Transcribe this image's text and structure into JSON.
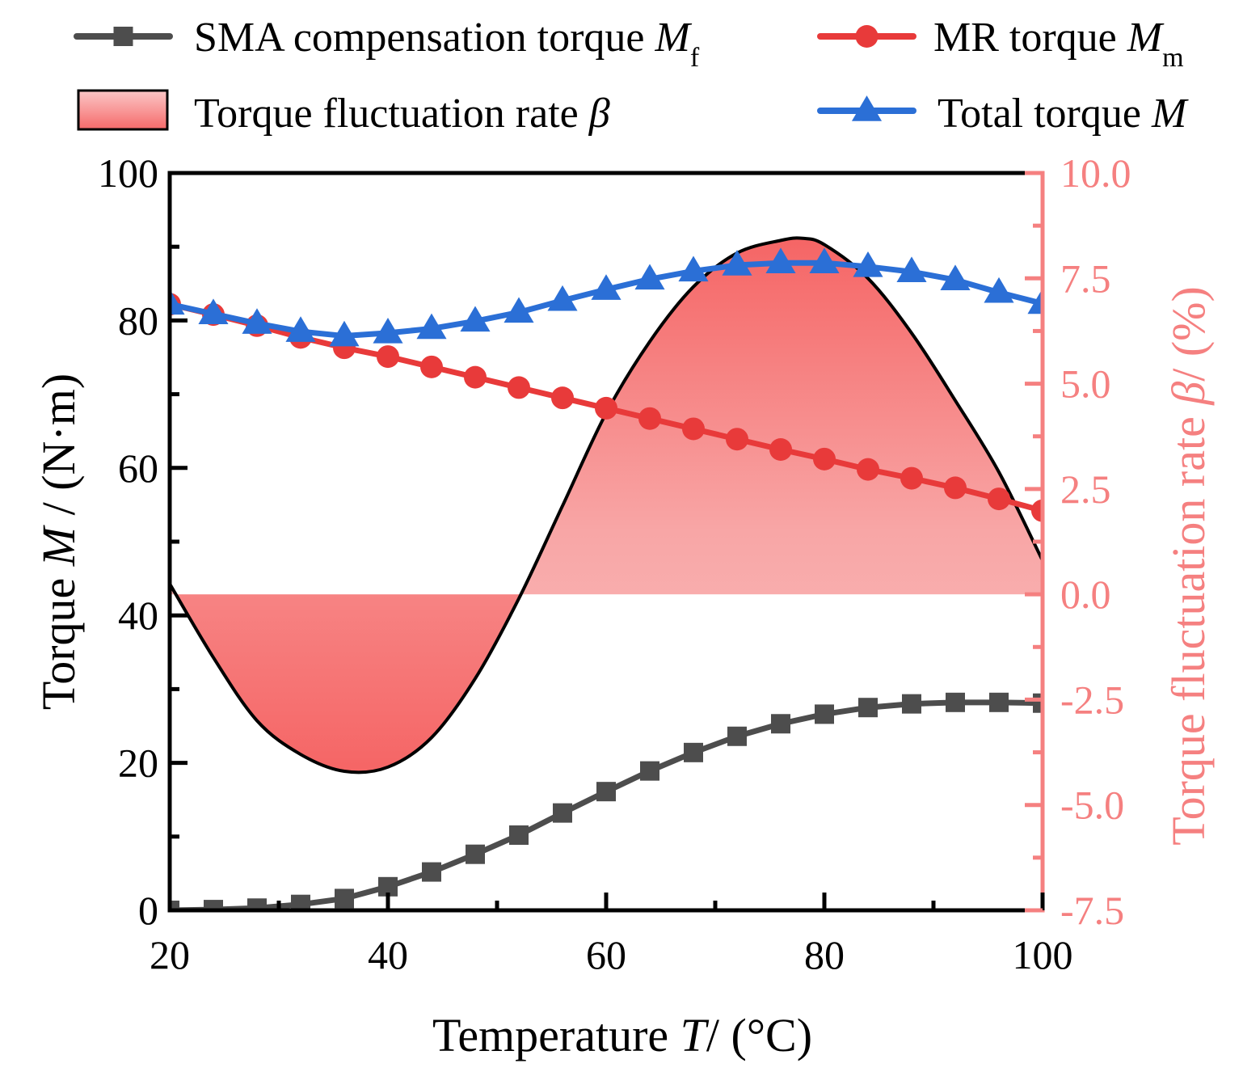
{
  "chart_data": {
    "type": "line",
    "title": "",
    "xlabel": {
      "prefix": "Temperature ",
      "symbol": "T",
      "suffix": "/ (°C)"
    },
    "ylabel": {
      "prefix": "Torque ",
      "symbol": "M",
      "suffix": " / (N·m)"
    },
    "y2label": {
      "prefix": "Torque fluctuation rate ",
      "symbol": "β",
      "suffix": "/ (%)"
    },
    "xlim": [
      20,
      100
    ],
    "ylim": [
      0,
      100
    ],
    "y2lim": [
      -7.5,
      10
    ],
    "x_ticks": [
      20,
      40,
      60,
      80,
      100
    ],
    "y_ticks": [
      0,
      20,
      40,
      60,
      80,
      100
    ],
    "y2_ticks": [
      -7.5,
      -5.0,
      -2.5,
      0.0,
      2.5,
      5.0,
      7.5,
      10.0
    ],
    "y2_tick_labels": [
      "-7.5",
      "-5.0",
      "-2.5",
      "0.0",
      "2.5",
      "5.0",
      "7.5",
      "10.0"
    ],
    "grid": false,
    "legend_position": "top",
    "colors": {
      "sma": "#4d4d4d",
      "mr": "#e83a3a",
      "total": "#2b6fd6",
      "fluct_fill": "#f57070",
      "right_axis": "#f58080"
    },
    "x": [
      20,
      24,
      28,
      32,
      36,
      40,
      44,
      48,
      52,
      56,
      60,
      64,
      68,
      72,
      76,
      80,
      84,
      88,
      92,
      96,
      100
    ],
    "series": [
      {
        "key": "sma",
        "name": "SMA compensation torque",
        "symbol": "M",
        "subscript": "f",
        "marker": "square",
        "axis": "left",
        "values": [
          0.0,
          0.1,
          0.3,
          0.8,
          1.6,
          3.2,
          5.2,
          7.6,
          10.2,
          13.2,
          16.1,
          18.9,
          21.4,
          23.6,
          25.3,
          26.6,
          27.5,
          28.0,
          28.2,
          28.2,
          28.1
        ]
      },
      {
        "key": "mr",
        "name": "MR torque",
        "symbol": "M",
        "subscript": "m",
        "marker": "circle",
        "axis": "left",
        "values": [
          82.2,
          80.8,
          79.3,
          77.7,
          76.3,
          75.1,
          73.7,
          72.3,
          70.9,
          69.5,
          68.1,
          66.7,
          65.3,
          63.9,
          62.5,
          61.2,
          59.8,
          58.6,
          57.3,
          55.8,
          54.2
        ]
      },
      {
        "key": "total",
        "name": "Total torque",
        "symbol": "M",
        "subscript": "",
        "marker": "triangle",
        "axis": "left",
        "values": [
          82.2,
          80.9,
          79.6,
          78.5,
          77.9,
          78.3,
          78.9,
          79.9,
          81.1,
          82.7,
          84.2,
          85.6,
          86.7,
          87.5,
          87.8,
          87.8,
          87.3,
          86.6,
          85.5,
          83.8,
          82.3
        ]
      }
    ],
    "fluctuation": {
      "name": "Torque fluctuation rate",
      "symbol": "β",
      "axis": "right",
      "x": [
        20,
        24,
        28,
        32,
        36,
        40,
        44,
        48,
        52,
        56,
        60,
        64,
        68,
        72,
        76,
        78,
        80,
        84,
        88,
        92,
        96,
        100
      ],
      "values": [
        0.25,
        -1.5,
        -3.0,
        -3.8,
        -4.2,
        -4.1,
        -3.4,
        -2.0,
        -0.1,
        2.1,
        4.3,
        6.0,
        7.3,
        8.1,
        8.4,
        8.45,
        8.3,
        7.5,
        6.2,
        4.6,
        2.9,
        0.8
      ]
    }
  }
}
